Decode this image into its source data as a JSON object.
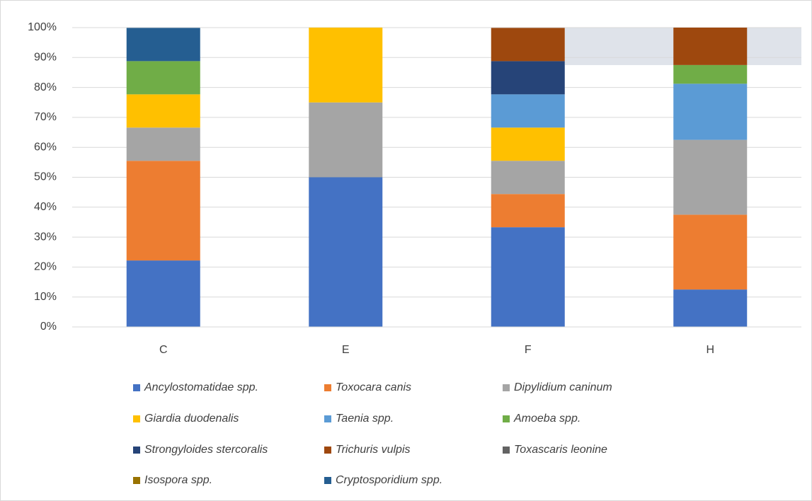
{
  "chart_data": {
    "type": "stacked_bar",
    "categories": [
      "C",
      "E",
      "F",
      "H"
    ],
    "series": [
      {
        "name": "Ancylostomatidae spp.",
        "color": "#4472c4",
        "values": [
          22.2,
          50,
          33.3,
          12.5
        ]
      },
      {
        "name": "Toxocara canis",
        "color": "#ed7d31",
        "values": [
          33.3,
          0,
          11.1,
          25
        ]
      },
      {
        "name": "Dipylidium caninum",
        "color": "#a5a5a5",
        "values": [
          11.1,
          25,
          11.1,
          25
        ]
      },
      {
        "name": "Giardia duodenalis",
        "color": "#ffc000",
        "values": [
          11.1,
          25,
          11.1,
          0
        ]
      },
      {
        "name": "Taenia spp.",
        "color": "#5b9bd5",
        "values": [
          0,
          0,
          11.1,
          18.75
        ]
      },
      {
        "name": "Amoeba spp.",
        "color": "#70ad47",
        "values": [
          11.1,
          0,
          0,
          6.25
        ]
      },
      {
        "name": "Strongyloides stercoralis",
        "color": "#264478",
        "values": [
          0,
          0,
          11.1,
          0
        ]
      },
      {
        "name": "Trichuris vulpis",
        "color": "#9e480e",
        "values": [
          0,
          0,
          11.1,
          12.5
        ]
      },
      {
        "name": "Toxascaris leonine",
        "color": "#636363",
        "values": [
          0,
          0,
          0,
          0
        ]
      },
      {
        "name": "Isospora spp.",
        "color": "#997300",
        "values": [
          0,
          0,
          0,
          0
        ]
      },
      {
        "name": "Cryptosporidium spp.",
        "color": "#255e91",
        "values": [
          11.1,
          0,
          0,
          0
        ]
      }
    ],
    "ylim": [
      0,
      100
    ],
    "yticks": [
      {
        "value": 0,
        "label": "0%"
      },
      {
        "value": 10,
        "label": "10%"
      },
      {
        "value": 20,
        "label": "20%"
      },
      {
        "value": 30,
        "label": "30%"
      },
      {
        "value": 40,
        "label": "40%"
      },
      {
        "value": 50,
        "label": "50%"
      },
      {
        "value": 60,
        "label": "60%"
      },
      {
        "value": 70,
        "label": "70%"
      },
      {
        "value": 80,
        "label": "80%"
      },
      {
        "value": 90,
        "label": "90%"
      },
      {
        "value": 100,
        "label": "100%"
      }
    ],
    "grid": true,
    "legend": "bottom"
  }
}
